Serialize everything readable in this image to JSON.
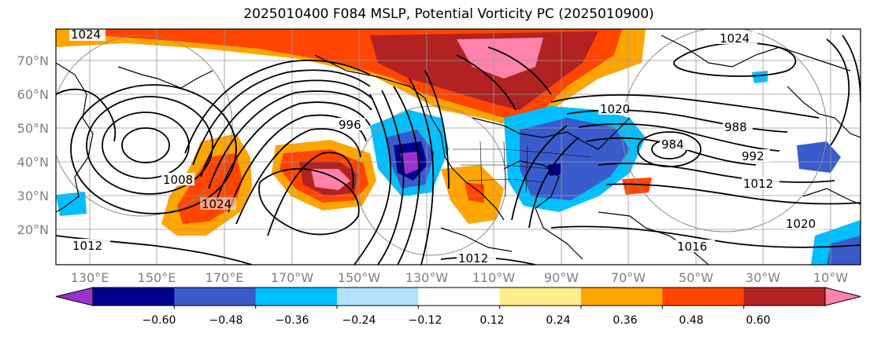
{
  "title": "2025010400 F084 MSLP, Potential Vorticity PC (2025010900)",
  "lat_labels": [
    "70°N",
    "60°N",
    "50°N",
    "40°N",
    "30°N",
    "20°N"
  ],
  "lon_labels": [
    "130°E",
    "150°E",
    "170°E",
    "170°W",
    "150°W",
    "130°W",
    "110°W",
    "90°W",
    "70°W",
    "50°W",
    "30°W",
    "10°W"
  ],
  "colorbar": {
    "ticks": [
      "−0.60",
      "−0.48",
      "−0.36",
      "−0.24",
      "−0.12",
      "0.12",
      "0.24",
      "0.36",
      "0.48",
      "0.60"
    ],
    "colors": [
      "#9932cc",
      "#00008b",
      "#3a5bcc",
      "#00bfff",
      "#b0e2ff",
      "#ffffff",
      "#ffec8b",
      "#ffa500",
      "#ff4500",
      "#b22222",
      "#ff82ab"
    ]
  },
  "contour_labels": [
    "1024",
    "1024",
    "1008",
    "996",
    "984",
    "988",
    "992",
    "1012",
    "1016",
    "1020",
    "1012",
    "1012",
    "1024",
    "1020"
  ],
  "colors": {
    "outline": "#000000",
    "grid": "#9a9a9a",
    "label": "#7f7f7f"
  }
}
